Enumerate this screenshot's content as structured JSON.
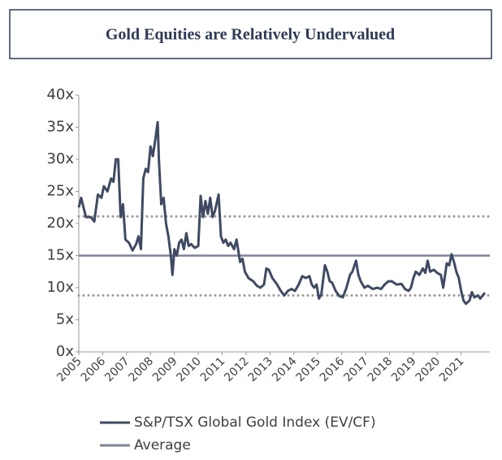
{
  "chart_data": {
    "type": "line",
    "title": "Gold Equities are Relatively Undervalued",
    "x": [
      2005.0,
      2005.1,
      2005.3,
      2005.5,
      2005.65,
      2005.8,
      2005.95,
      2006.05,
      2006.2,
      2006.35,
      2006.45,
      2006.55,
      2006.65,
      2006.75,
      2006.85,
      2006.95,
      2007.1,
      2007.25,
      2007.4,
      2007.5,
      2007.6,
      2007.7,
      2007.8,
      2007.9,
      2008.0,
      2008.1,
      2008.2,
      2008.3,
      2008.35,
      2008.45,
      2008.55,
      2008.65,
      2008.75,
      2008.85,
      2008.92,
      2009.0,
      2009.1,
      2009.2,
      2009.3,
      2009.4,
      2009.5,
      2009.6,
      2009.7,
      2009.85,
      2010.0,
      2010.1,
      2010.2,
      2010.3,
      2010.4,
      2010.5,
      2010.6,
      2010.7,
      2010.85,
      2010.95,
      2011.05,
      2011.15,
      2011.25,
      2011.35,
      2011.5,
      2011.6,
      2011.75,
      2011.85,
      2011.95,
      2012.1,
      2012.3,
      2012.45,
      2012.6,
      2012.75,
      2012.85,
      2012.95,
      2013.1,
      2013.3,
      2013.45,
      2013.6,
      2013.75,
      2013.9,
      2014.05,
      2014.2,
      2014.35,
      2014.5,
      2014.65,
      2014.75,
      2014.85,
      2014.95,
      2015.05,
      2015.15,
      2015.3,
      2015.4,
      2015.5,
      2015.6,
      2015.75,
      2015.9,
      2016.05,
      2016.2,
      2016.35,
      2016.45,
      2016.6,
      2016.7,
      2016.8,
      2016.95,
      2017.1,
      2017.3,
      2017.5,
      2017.65,
      2017.8,
      2017.95,
      2018.1,
      2018.3,
      2018.5,
      2018.65,
      2018.8,
      2018.9,
      2019.0,
      2019.1,
      2019.25,
      2019.4,
      2019.5,
      2019.6,
      2019.7,
      2019.85,
      2020.0,
      2020.15,
      2020.25,
      2020.4,
      2020.5,
      2020.6,
      2020.7,
      2020.8,
      2020.9,
      2021.0,
      2021.1,
      2021.2,
      2021.35,
      2021.45,
      2021.55,
      2021.7,
      2021.8,
      2021.9,
      2022.0
    ],
    "series": [
      {
        "name": "S&P/TSX Global Gold Index (EV/CF)",
        "color": "#3f4a62",
        "values": [
          22.5,
          24,
          21,
          21,
          20.3,
          24.5,
          24,
          25.8,
          25,
          27,
          26.5,
          30,
          30,
          21,
          23,
          17.5,
          17,
          15.8,
          16.8,
          18,
          16,
          27,
          28.5,
          28,
          32,
          30.5,
          33,
          35.8,
          30,
          23,
          24,
          20,
          18,
          15,
          12,
          16,
          15,
          17,
          17.5,
          16,
          18.5,
          16.5,
          16.8,
          16.2,
          16.5,
          24.3,
          21,
          23.5,
          21.5,
          24,
          21,
          22,
          24.5,
          18,
          17,
          17.5,
          16.5,
          17,
          16,
          17.5,
          14,
          14.5,
          12.5,
          11.5,
          11,
          10.3,
          10,
          10.5,
          13,
          12.8,
          11.5,
          10.5,
          9.5,
          8.8,
          9.5,
          9.8,
          9.5,
          10.5,
          11.8,
          11.5,
          11.8,
          10.5,
          10,
          10.5,
          8.3,
          9,
          13.5,
          12.5,
          11,
          10.8,
          9.5,
          8.7,
          8.5,
          10,
          12,
          12.5,
          14.2,
          12,
          11,
          10,
          10.3,
          9.8,
          10,
          9.8,
          10.5,
          11,
          11,
          10.5,
          10.6,
          9.8,
          9.5,
          10,
          11.5,
          12.5,
          12,
          13,
          12.3,
          14.2,
          12.5,
          12.8,
          12.3,
          12,
          10,
          13.8,
          13.5,
          15.2,
          14,
          12.5,
          11.5,
          9.5,
          8,
          7.5,
          8,
          9.3,
          8.5,
          8.8,
          8.3,
          8.8,
          9.2
        ]
      }
    ],
    "reference_lines": [
      {
        "name": "Average",
        "value": 15,
        "color": "#7d8397",
        "style": "solid"
      },
      {
        "value": 21.1,
        "color": "#999999",
        "style": "dotted"
      },
      {
        "value": 8.8,
        "color": "#999999",
        "style": "dotted"
      }
    ],
    "xlim": [
      2005,
      2022.2
    ],
    "xticks": [
      2005,
      2006,
      2007,
      2008,
      2009,
      2010,
      2011,
      2012,
      2013,
      2014,
      2015,
      2016,
      2017,
      2018,
      2019,
      2020,
      2021
    ],
    "ylim": [
      0,
      40
    ],
    "yticks": [
      {
        "value": 0,
        "label": "0x"
      },
      {
        "value": 5,
        "label": "5x"
      },
      {
        "value": 10,
        "label": "10x"
      },
      {
        "value": 15,
        "label": "15x"
      },
      {
        "value": 20,
        "label": "20x"
      },
      {
        "value": 25,
        "label": "25x"
      },
      {
        "value": 30,
        "label": "30x"
      },
      {
        "value": 35,
        "label": "35x"
      },
      {
        "value": 40,
        "label": "40x"
      }
    ]
  }
}
